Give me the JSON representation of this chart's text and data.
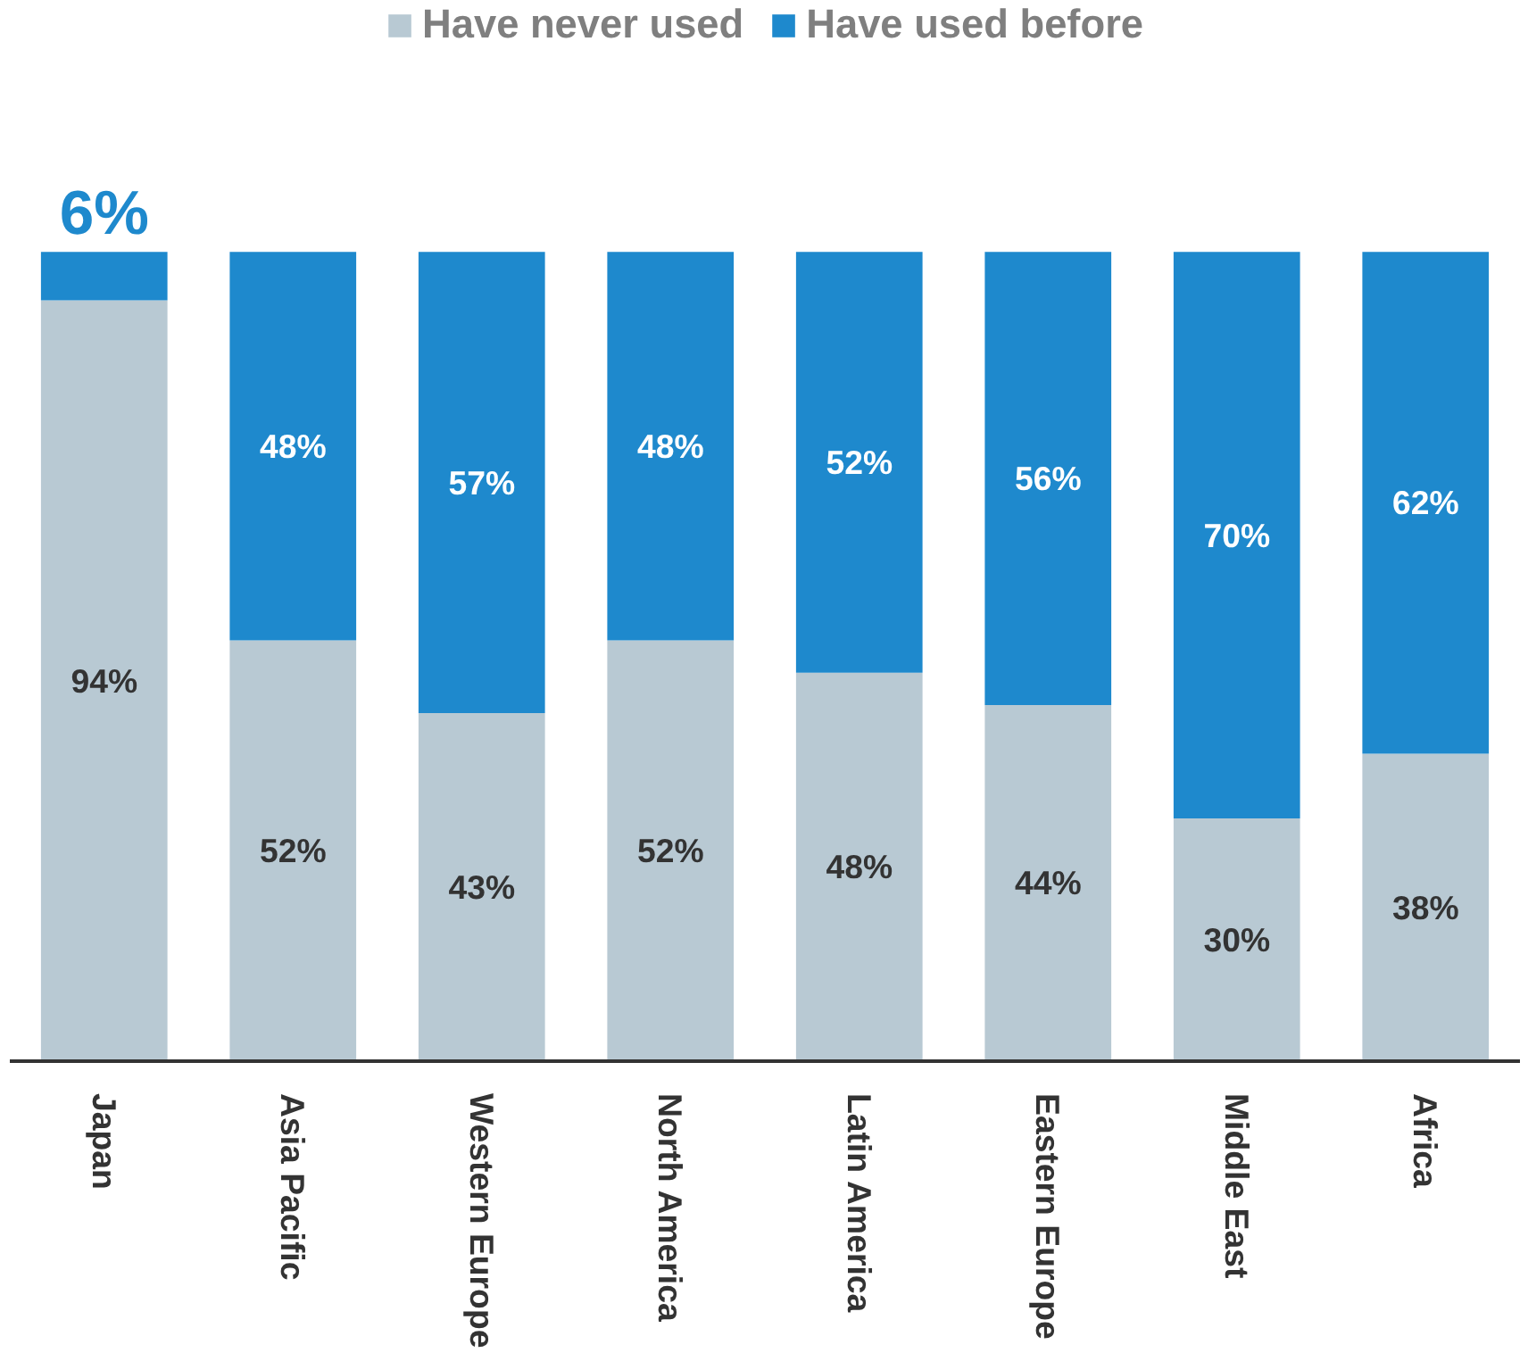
{
  "chart_data": {
    "type": "bar",
    "stacked": true,
    "legend": "top",
    "grid": false,
    "categories": [
      "Japan",
      "Asia Pacific",
      "Western Europe",
      "North America",
      "Latin America",
      "Eastern Europe",
      "Middle East",
      "Africa"
    ],
    "series": [
      {
        "name": "Have never used",
        "color": "#b8c9d3",
        "values": [
          94,
          52,
          43,
          52,
          48,
          44,
          30,
          38
        ],
        "value_labels": [
          "94%",
          "52%",
          "43%",
          "52%",
          "48%",
          "44%",
          "30%",
          "38%"
        ]
      },
      {
        "name": "Have used before",
        "color": "#1e89cd",
        "values": [
          6,
          48,
          57,
          48,
          52,
          56,
          70,
          62
        ],
        "value_labels": [
          "6%",
          "48%",
          "57%",
          "48%",
          "52%",
          "56%",
          "70%",
          "62%"
        ]
      }
    ]
  }
}
